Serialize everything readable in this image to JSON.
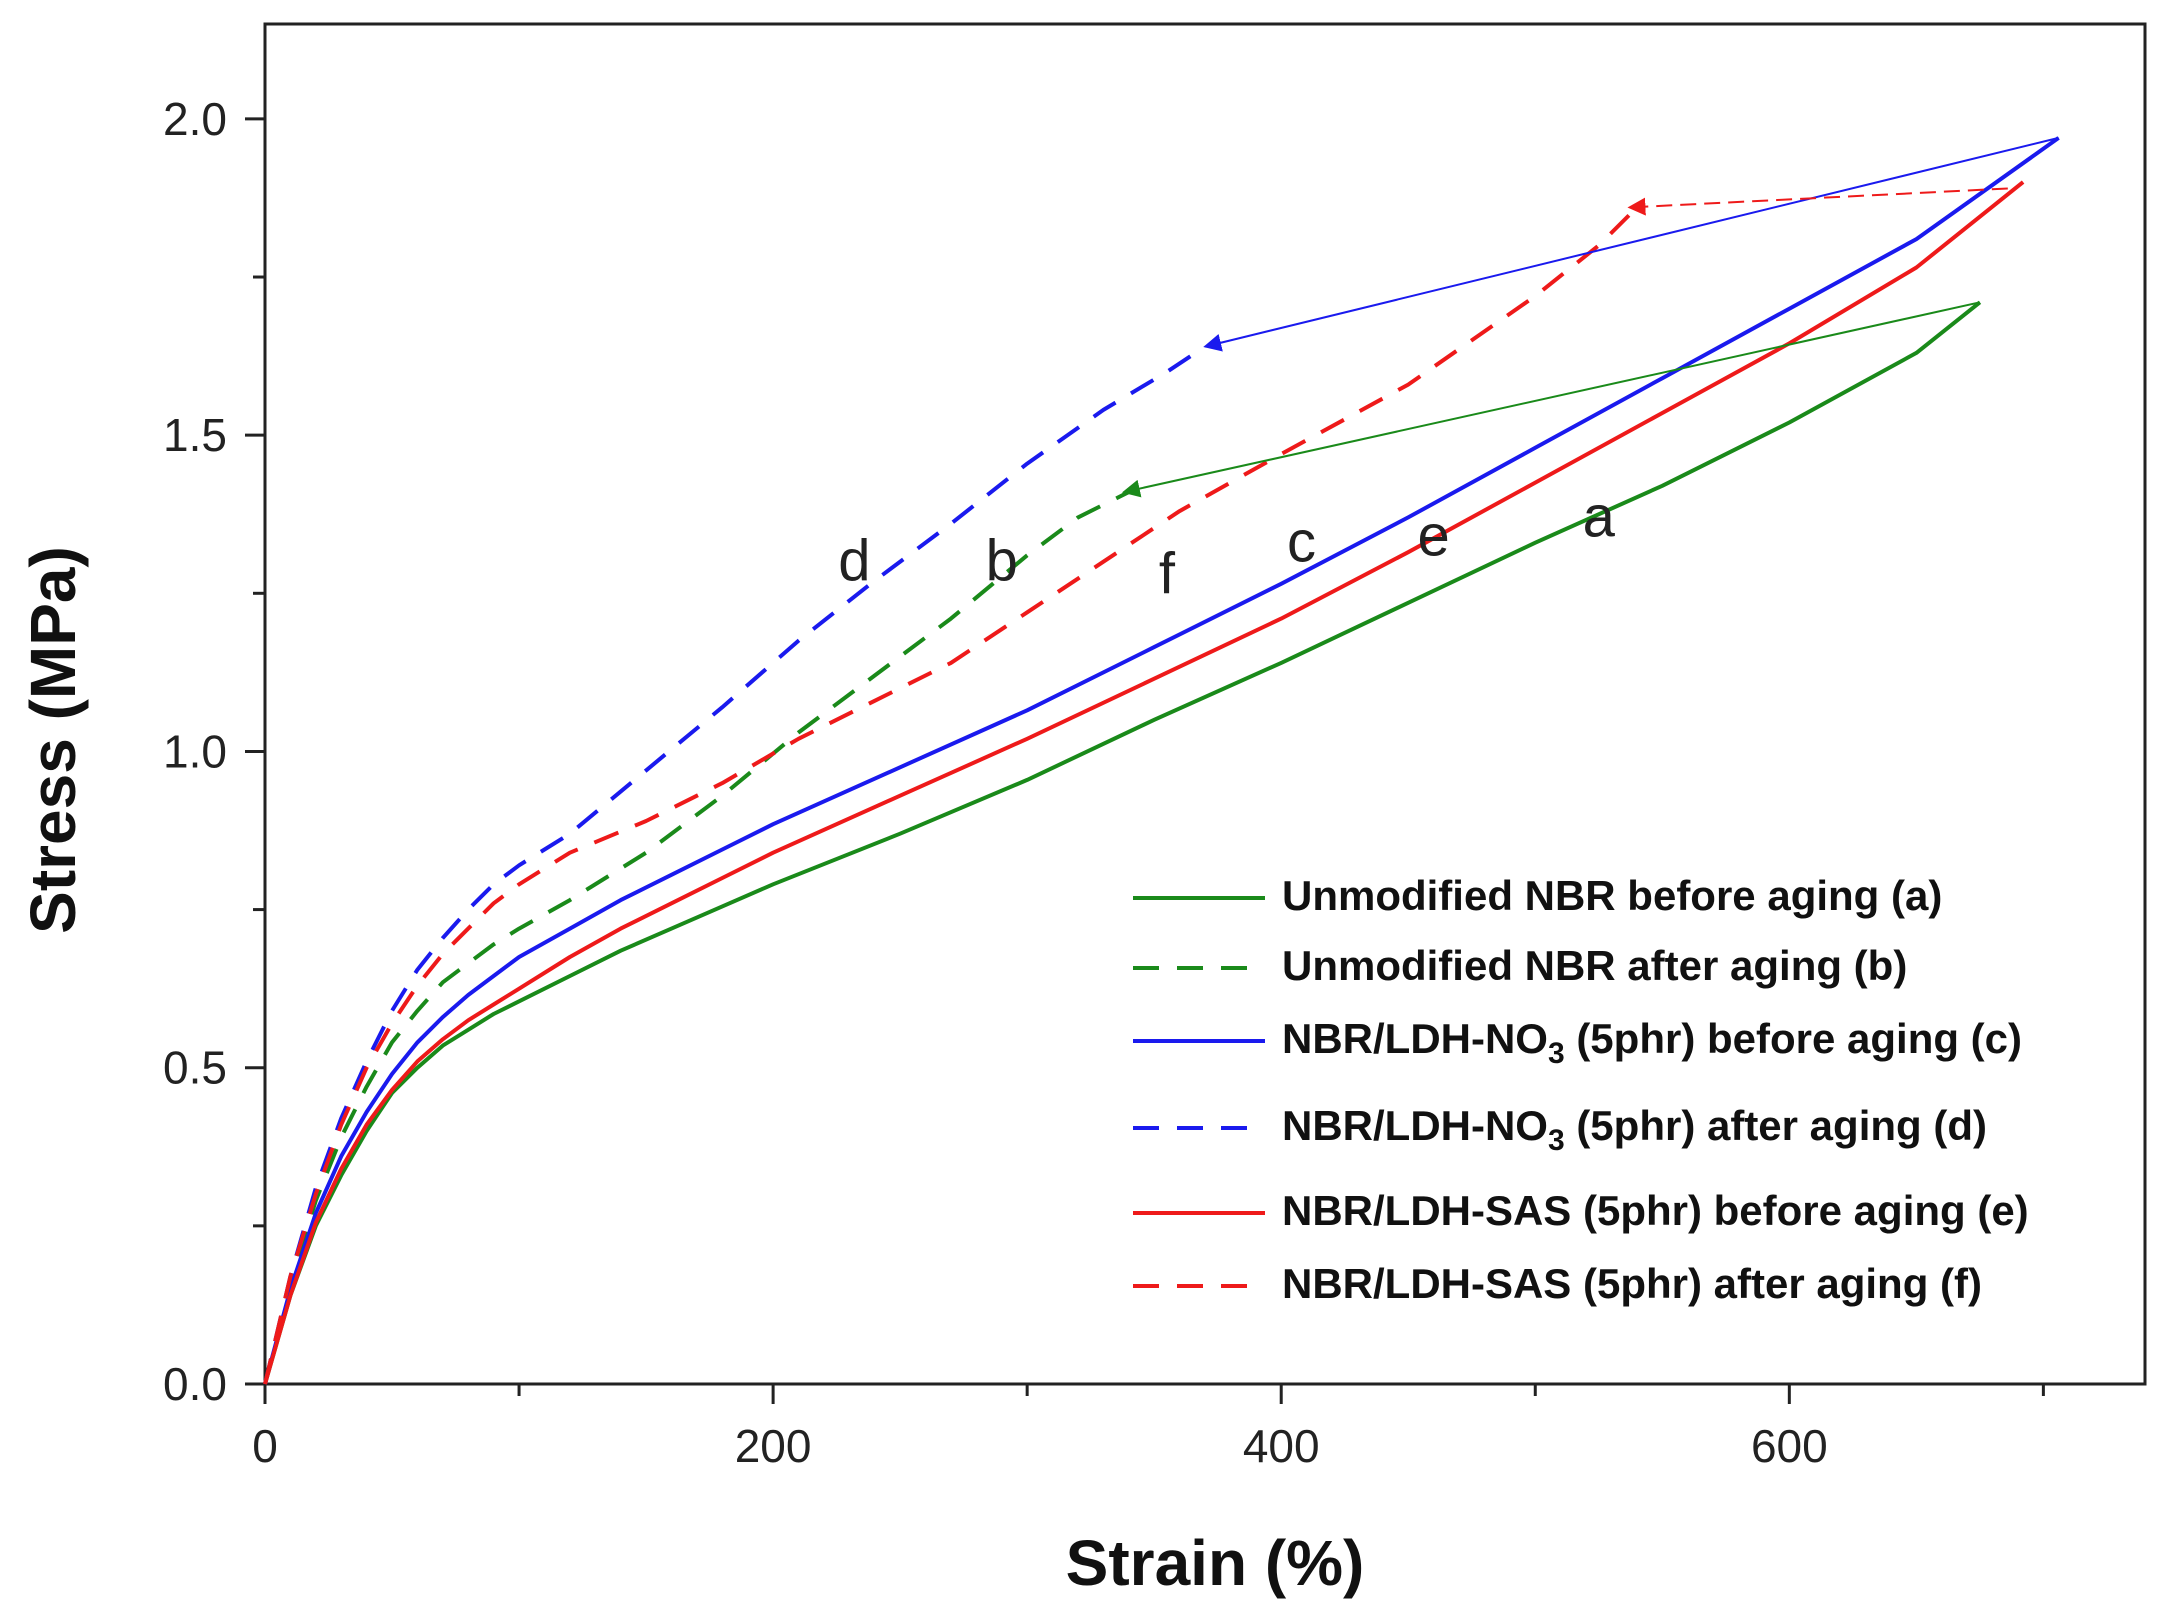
{
  "chart_data": {
    "type": "line",
    "title": "",
    "xlabel": "Strain (%)",
    "ylabel": "Stress (MPa)",
    "xlim": [
      0,
      740
    ],
    "ylim": [
      0,
      2.15
    ],
    "xticks": [
      0,
      200,
      400,
      600
    ],
    "xminor": [
      100,
      300,
      500,
      700
    ],
    "xtick_labels": [
      "0",
      "200",
      "400",
      "600"
    ],
    "yticks": [
      0.0,
      0.5,
      1.0,
      1.5,
      2.0
    ],
    "ytick_labels": [
      "0.0",
      "0.5",
      "1.0",
      "1.5",
      "2.0"
    ],
    "series": [
      {
        "id": "a",
        "name_main": "Unmodified NBR before aging (a)",
        "name_sub": "",
        "name_tail": "",
        "color": "#1a8a1a",
        "dash": false,
        "x": [
          0,
          10,
          20,
          30,
          40,
          50,
          60,
          70,
          80,
          90,
          100,
          120,
          140,
          160,
          180,
          200,
          250,
          300,
          350,
          400,
          450,
          500,
          550,
          600,
          650,
          675
        ],
        "y": [
          0,
          0.14,
          0.25,
          0.33,
          0.4,
          0.46,
          0.5,
          0.535,
          0.56,
          0.585,
          0.605,
          0.645,
          0.685,
          0.72,
          0.755,
          0.79,
          0.87,
          0.955,
          1.05,
          1.14,
          1.235,
          1.33,
          1.42,
          1.52,
          1.63,
          1.71
        ],
        "label_pos": [
          525,
          1.34
        ]
      },
      {
        "id": "b",
        "name_main": " Unmodified NBR after aging (b)",
        "name_sub": "",
        "name_tail": "",
        "color": "#1a8a1a",
        "dash": true,
        "x": [
          0,
          10,
          20,
          30,
          40,
          50,
          60,
          70,
          80,
          90,
          100,
          120,
          150,
          180,
          210,
          240,
          270,
          300,
          320,
          340
        ],
        "y": [
          0,
          0.16,
          0.29,
          0.39,
          0.47,
          0.54,
          0.59,
          0.635,
          0.665,
          0.695,
          0.72,
          0.765,
          0.84,
          0.93,
          1.03,
          1.12,
          1.21,
          1.31,
          1.37,
          1.41
        ],
        "label_pos": [
          290,
          1.27
        ]
      },
      {
        "id": "c",
        "name_main": "NBR/LDH-NO",
        "name_sub": "3",
        "name_tail": " (5phr) before aging (c)",
        "color": "#1a1aee",
        "dash": false,
        "x": [
          0,
          10,
          20,
          30,
          40,
          50,
          60,
          70,
          80,
          90,
          100,
          120,
          140,
          160,
          180,
          200,
          250,
          300,
          350,
          400,
          450,
          500,
          550,
          600,
          650,
          706
        ],
        "y": [
          0,
          0.15,
          0.27,
          0.36,
          0.43,
          0.49,
          0.54,
          0.58,
          0.615,
          0.645,
          0.675,
          0.72,
          0.765,
          0.805,
          0.845,
          0.885,
          0.975,
          1.065,
          1.165,
          1.265,
          1.37,
          1.48,
          1.59,
          1.7,
          1.81,
          1.97
        ],
        "label_pos": [
          408,
          1.3
        ]
      },
      {
        "id": "d",
        "name_main": "NBR/LDH-NO",
        "name_sub": "3",
        "name_tail": " (5phr) after aging (d)",
        "color": "#1a1aee",
        "dash": true,
        "x": [
          0,
          10,
          20,
          30,
          40,
          50,
          60,
          70,
          80,
          90,
          100,
          120,
          150,
          180,
          210,
          240,
          270,
          300,
          330,
          355,
          370
        ],
        "y": [
          0,
          0.17,
          0.31,
          0.42,
          0.51,
          0.59,
          0.655,
          0.705,
          0.75,
          0.79,
          0.82,
          0.87,
          0.97,
          1.07,
          1.175,
          1.27,
          1.36,
          1.455,
          1.54,
          1.6,
          1.64
        ],
        "label_pos": [
          232,
          1.27
        ]
      },
      {
        "id": "e",
        "name_main": "NBR/LDH-SAS  (5phr) before aging (e)",
        "name_sub": "",
        "name_tail": "",
        "color": "#ee1a1a",
        "dash": false,
        "x": [
          0,
          10,
          20,
          30,
          40,
          50,
          60,
          70,
          80,
          90,
          100,
          120,
          140,
          160,
          180,
          200,
          250,
          300,
          350,
          400,
          450,
          500,
          550,
          600,
          650,
          692
        ],
        "y": [
          0,
          0.14,
          0.255,
          0.34,
          0.41,
          0.465,
          0.51,
          0.545,
          0.575,
          0.6,
          0.625,
          0.675,
          0.72,
          0.76,
          0.8,
          0.84,
          0.93,
          1.02,
          1.115,
          1.21,
          1.315,
          1.425,
          1.535,
          1.645,
          1.765,
          1.9
        ],
        "label_pos": [
          460,
          1.31
        ]
      },
      {
        "id": "f",
        "name_main": "NBR/LDH-SAS  (5phr) after aging (f)",
        "name_sub": "",
        "name_tail": "",
        "color": "#ee1a1a",
        "dash": true,
        "x": [
          0,
          10,
          20,
          30,
          40,
          50,
          60,
          70,
          80,
          90,
          100,
          120,
          150,
          180,
          210,
          240,
          270,
          300,
          330,
          360,
          400,
          450,
          500,
          525,
          540
        ],
        "y": [
          0,
          0.17,
          0.3,
          0.41,
          0.5,
          0.57,
          0.63,
          0.68,
          0.72,
          0.76,
          0.79,
          0.84,
          0.89,
          0.95,
          1.02,
          1.08,
          1.14,
          1.22,
          1.3,
          1.38,
          1.47,
          1.58,
          1.72,
          1.8,
          1.86
        ],
        "label_pos": [
          355,
          1.25
        ]
      }
    ],
    "annotations": [
      {
        "from_series": "c",
        "from": [
          706,
          1.97
        ],
        "to": [
          370,
          1.64
        ],
        "color": "#1a1aee"
      },
      {
        "from_series": "e",
        "from": [
          686,
          1.89
        ],
        "to": [
          537,
          1.86
        ],
        "color": "#ee1a1a"
      },
      {
        "from_series": "a",
        "from": [
          675,
          1.71
        ],
        "to": [
          338,
          1.41
        ],
        "color": "#1a8a1a"
      }
    ],
    "legend": {
      "placement": "bottom-right"
    }
  }
}
